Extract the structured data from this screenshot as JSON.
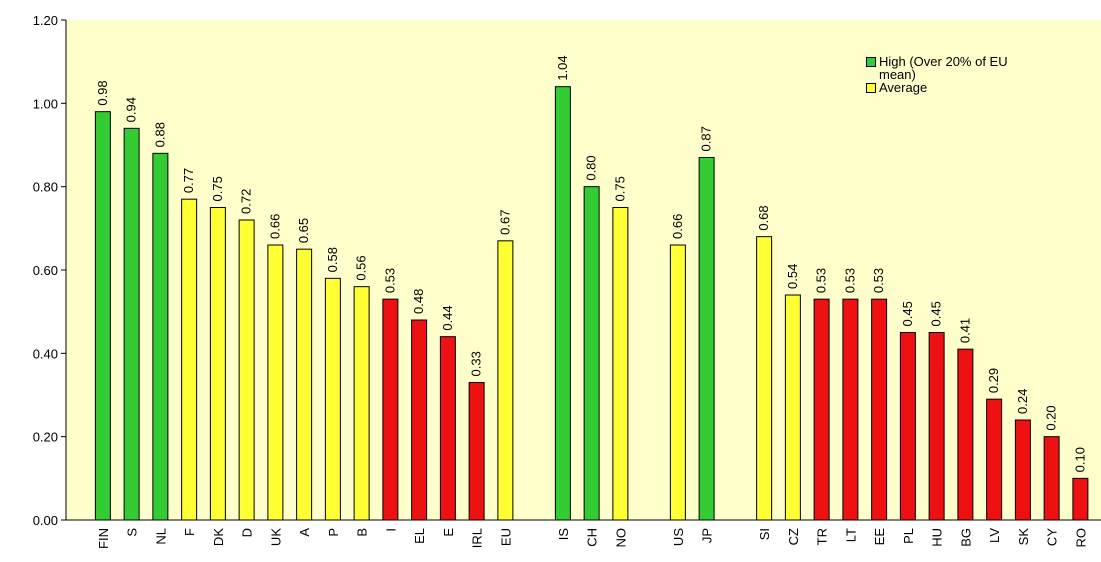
{
  "chart_data": {
    "type": "bar",
    "categories": [
      "FIN",
      "S",
      "NL",
      "F",
      "DK",
      "D",
      "UK",
      "A",
      "P",
      "B",
      "I",
      "EL",
      "E",
      "IRL",
      "EU",
      null,
      "IS",
      "CH",
      "NO",
      null,
      "US",
      "JP",
      null,
      "SI",
      "CZ",
      "TR",
      "LT",
      "EE",
      "PL",
      "HU",
      "BG",
      "LV",
      "SK",
      "CY",
      "RO"
    ],
    "values": [
      0.98,
      0.94,
      0.88,
      0.77,
      0.75,
      0.72,
      0.66,
      0.65,
      0.58,
      0.56,
      0.53,
      0.48,
      0.44,
      0.33,
      0.67,
      null,
      1.04,
      0.8,
      0.75,
      null,
      0.66,
      0.87,
      null,
      0.68,
      0.54,
      0.53,
      0.53,
      0.53,
      0.45,
      0.45,
      0.41,
      0.29,
      0.24,
      0.2,
      0.1
    ],
    "value_labels": [
      "0.98",
      "0.94",
      "0.88",
      "0.77",
      "0.75",
      "0.72",
      "0.66",
      "0.65",
      "0.58",
      "0.56",
      "0.53",
      "0.48",
      "0.44",
      "0.33",
      "0.67",
      null,
      "1.04",
      "0.80",
      "0.75",
      null,
      "0.66",
      "0.87",
      null,
      "0.68",
      "0.54",
      "0.53",
      "0.53",
      "0.53",
      "0.45",
      "0.45",
      "0.41",
      "0.29",
      "0.24",
      "0.20",
      "0.10"
    ],
    "colors": [
      "#33cc33",
      "#33cc33",
      "#33cc33",
      "#ffff33",
      "#ffff33",
      "#ffff33",
      "#ffff33",
      "#ffff33",
      "#ffff33",
      "#ffff33",
      "#ee1111",
      "#ee1111",
      "#ee1111",
      "#ee1111",
      "#ffff33",
      null,
      "#33cc33",
      "#33cc33",
      "#ffff33",
      null,
      "#ffff33",
      "#33cc33",
      null,
      "#ffff33",
      "#ffff33",
      "#ee1111",
      "#ee1111",
      "#ee1111",
      "#ee1111",
      "#ee1111",
      "#ee1111",
      "#ee1111",
      "#ee1111",
      "#ee1111",
      "#ee1111"
    ],
    "legend": [
      {
        "name": "High (Over 20% of EU mean)",
        "color": "#33cc33"
      },
      {
        "name": "Average",
        "color": "#ffff33"
      }
    ],
    "ylim": [
      0,
      1.2
    ],
    "yticks": [
      {
        "value": 0,
        "label": "0.00"
      },
      {
        "value": 0.2,
        "label": "0.20"
      },
      {
        "value": 0.4,
        "label": "0.40"
      },
      {
        "value": 0.6,
        "label": "0.60"
      },
      {
        "value": 0.8,
        "label": "0.80"
      },
      {
        "value": 1,
        "label": "1.00"
      },
      {
        "value": 1.2,
        "label": "1.20"
      }
    ]
  }
}
